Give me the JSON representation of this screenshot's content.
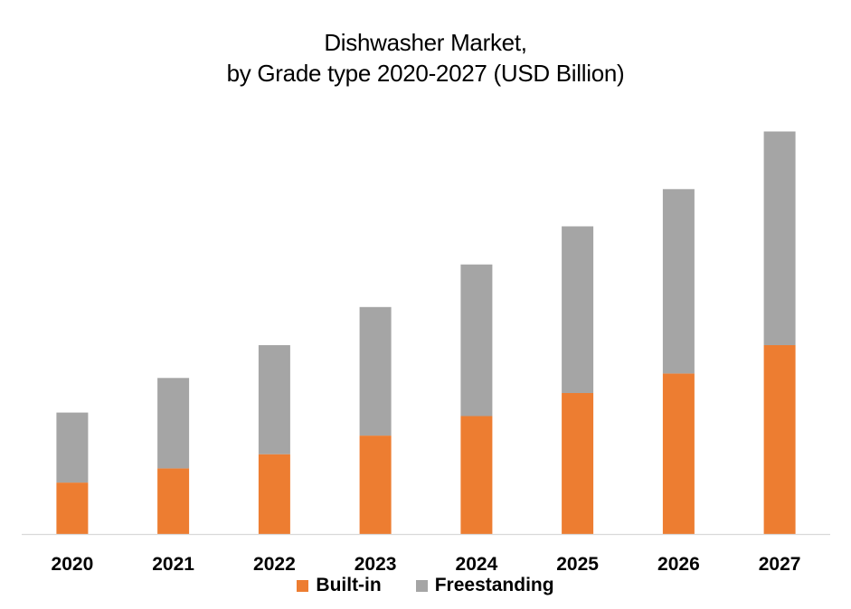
{
  "chart_data": {
    "type": "bar",
    "stacked": true,
    "title_lines": [
      "Dishwasher Market,",
      "by Grade type 2020-2027 (USD Billion)"
    ],
    "xlabel": "",
    "ylabel": "",
    "categories": [
      "2020",
      "2021",
      "2022",
      "2023",
      "2024",
      "2025",
      "2026",
      "2027"
    ],
    "series": [
      {
        "name": "Built-in",
        "color": "#ED7D31",
        "values": [
          5.8,
          7.4,
          9.0,
          11.1,
          13.3,
          15.9,
          18.1,
          21.3
        ]
      },
      {
        "name": "Freestanding",
        "color": "#A5A5A5",
        "values": [
          7.9,
          10.2,
          12.3,
          14.5,
          17.1,
          18.8,
          20.8,
          24.1
        ]
      }
    ],
    "ylim": [
      0,
      48
    ],
    "grid": false,
    "y_axis_visible": false,
    "legend_position": "bottom"
  }
}
